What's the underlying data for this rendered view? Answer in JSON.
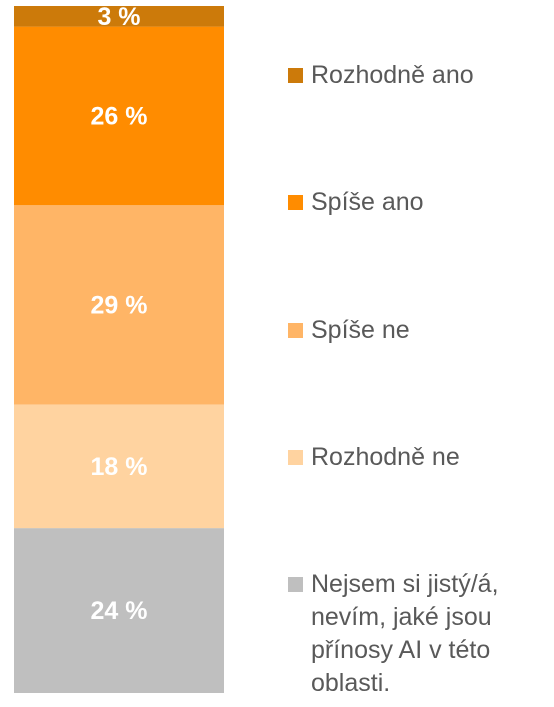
{
  "chart_data": {
    "type": "bar",
    "stacked": true,
    "categories": [
      null
    ],
    "ylim": [
      0,
      100
    ],
    "series": [
      {
        "name": "Rozhodně ano",
        "color": "#cc7a0a",
        "values": [
          3
        ],
        "value_labels": [
          "3 %"
        ]
      },
      {
        "name": "Spíše ano",
        "color": "#ff8c00",
        "values": [
          26
        ],
        "value_labels": [
          "26 %"
        ]
      },
      {
        "name": "Spíše ne",
        "color": "#ffb566",
        "values": [
          29
        ],
        "value_labels": [
          "29 %"
        ]
      },
      {
        "name": "Rozhodně ne",
        "color": "#ffd3a0",
        "values": [
          18
        ],
        "value_labels": [
          "18 %"
        ]
      },
      {
        "name": "Nejsem si jistý/á, nevím, jaké jsou přínosy AI v této oblasti.",
        "color": "#bfbfbf",
        "values": [
          24
        ],
        "value_labels": [
          "24 %"
        ]
      }
    ]
  }
}
